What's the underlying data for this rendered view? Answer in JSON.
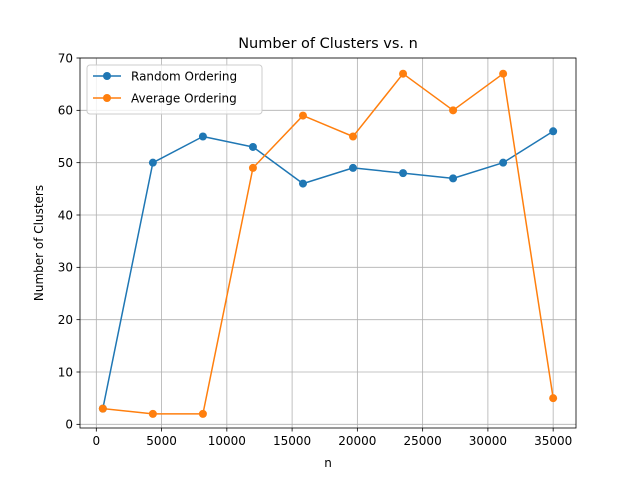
{
  "chart_data": {
    "type": "line",
    "title": "Number of Clusters vs. n",
    "xlabel": "n",
    "ylabel": "Number of Clusters",
    "xlim": [
      -1250,
      36750
    ],
    "ylim": [
      -0.7,
      70
    ],
    "xticks": [
      0,
      5000,
      10000,
      15000,
      20000,
      25000,
      30000,
      35000
    ],
    "xtick_labels": [
      "0",
      "5000",
      "10000",
      "15000",
      "20000",
      "25000",
      "30000",
      "35000"
    ],
    "yticks": [
      0,
      10,
      20,
      30,
      40,
      50,
      60,
      70
    ],
    "ytick_labels": [
      "0",
      "10",
      "20",
      "30",
      "40",
      "50",
      "60",
      "70"
    ],
    "grid": true,
    "legend_position": "upper-left",
    "x": [
      500,
      4333,
      8167,
      12000,
      15833,
      19667,
      23500,
      27333,
      31167,
      35000
    ],
    "series": [
      {
        "name": "Random Ordering",
        "color": "#1f77b4",
        "marker": "circle",
        "values": [
          3,
          50,
          55,
          53,
          46,
          49,
          48,
          47,
          50,
          56
        ]
      },
      {
        "name": "Average Ordering",
        "color": "#ff7f0e",
        "marker": "circle",
        "values": [
          3,
          2,
          2,
          49,
          59,
          55,
          67,
          60,
          67,
          5
        ]
      }
    ]
  }
}
